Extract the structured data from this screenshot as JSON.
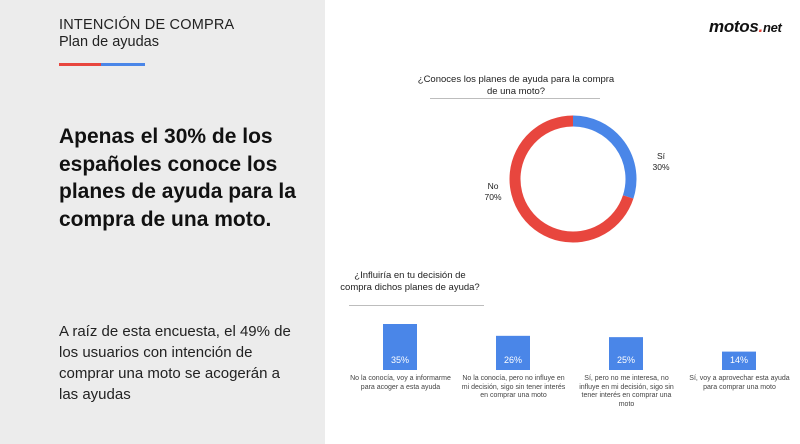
{
  "header": {
    "section_title": "INTENCIÓN DE COMPRA",
    "section_subtitle": "Plan de ayudas"
  },
  "colors": {
    "red": "#e8463e",
    "blue": "#4a86e8",
    "panel_bg": "#ececec"
  },
  "headline": "Apenas el 30% de los españoles conoce los planes de ayuda para la compra de una moto.",
  "body_text": "A raíz de esta encuesta, el 49% de los usuarios con intención de comprar una moto se acogerán a las ayudas",
  "logo": {
    "main": "motos",
    "dot": ".",
    "suffix": "net"
  },
  "chart_data": [
    {
      "type": "pie",
      "title": "¿Conoces los planes de ayuda para la compra de una moto?",
      "categories": [
        "Sí",
        "No"
      ],
      "values": [
        30,
        70
      ],
      "value_labels": [
        "30%",
        "70%"
      ],
      "colors": [
        "#4a86e8",
        "#e8463e"
      ],
      "donut": true
    },
    {
      "type": "bar",
      "title": "¿Influiría en tu decisión de compra dichos planes de ayuda?",
      "categories": [
        "No la conocía, voy a informarme para acoger a esta ayuda",
        "No la conocía, pero no influye en mi decisión, sigo sin tener interés en comprar una moto",
        "Sí, pero no me interesa, no influye en mi decisión, sigo sin tener interés en comprar una moto",
        "Sí, voy a aprovechar esta ayuda para comprar una moto"
      ],
      "values": [
        35,
        26,
        25,
        14
      ],
      "value_labels": [
        "35%",
        "26%",
        "25%",
        "14%"
      ],
      "ylim": [
        0,
        35
      ],
      "color": "#4a86e8"
    }
  ]
}
